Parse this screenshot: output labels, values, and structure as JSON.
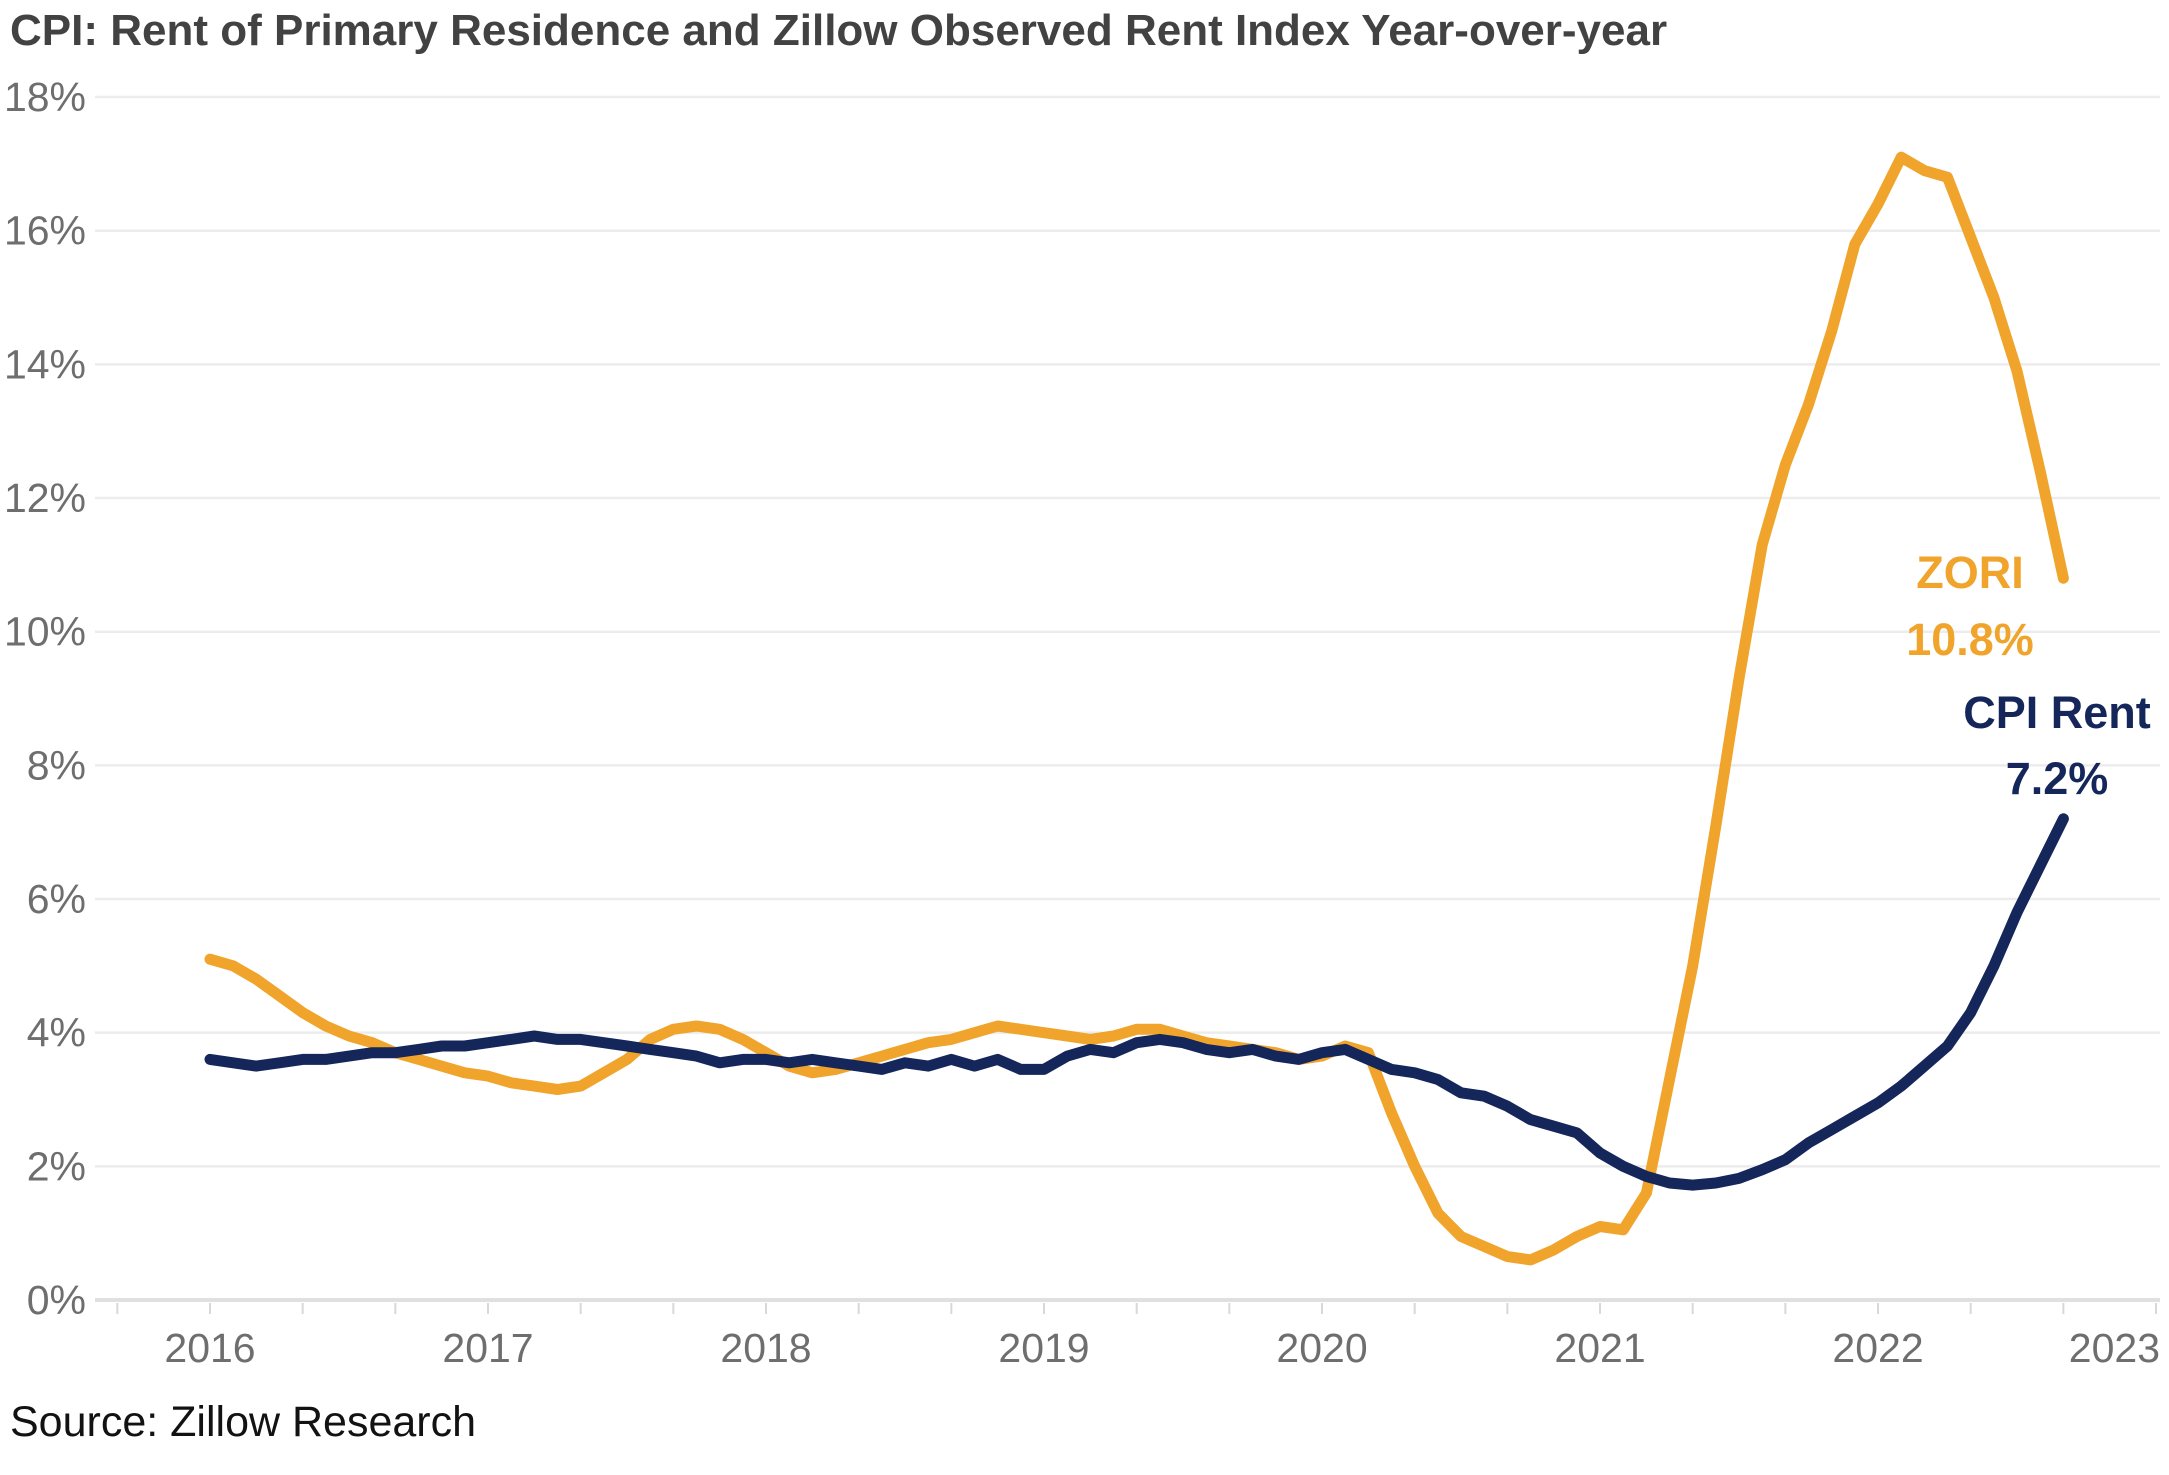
{
  "title": "CPI: Rent of Primary Residence and Zillow Observed Rent Index Year-over-year",
  "source": "Source: Zillow Research",
  "colors": {
    "zori": "#F0A42C",
    "cpi": "#14265A",
    "grid": "#ECECEC",
    "axis_line": "#E0E0E0",
    "tick": "#D8D8D8",
    "tick_label": "#6E6E6E",
    "title_text": "#424242",
    "source_text": "#121212"
  },
  "annotations": {
    "zori_label": "ZORI",
    "zori_value": "10.8%",
    "cpi_label": "CPI Rent",
    "cpi_value": "7.2%"
  },
  "y_axis": {
    "tick_labels": [
      "0%",
      "2%",
      "4%",
      "6%",
      "8%",
      "10%",
      "12%",
      "14%",
      "16%",
      "18%"
    ],
    "tick_values": [
      0,
      2,
      4,
      6,
      8,
      10,
      12,
      14,
      16,
      18
    ]
  },
  "x_axis": {
    "tick_labels": [
      "2016",
      "2017",
      "2018",
      "2019",
      "2020",
      "2021",
      "2022",
      "2023"
    ],
    "tick_month_index": [
      0,
      12,
      24,
      36,
      48,
      60,
      72,
      84
    ]
  },
  "chart_data": {
    "type": "line",
    "title": "CPI: Rent of Primary Residence and Zillow Observed Rent Index Year-over-year",
    "xlabel": "",
    "ylabel": "",
    "ylim": [
      0,
      18
    ],
    "x_domain_month_index": [
      0,
      84
    ],
    "x_start": "2016-01",
    "x_end_of_data": "2022-09",
    "grid": "horizontal",
    "legend_position": "inline-annotations",
    "series": [
      {
        "name": "ZORI",
        "color": "#F0A42C",
        "end_label": "ZORI 10.8%",
        "values": [
          5.1,
          5.0,
          4.8,
          4.55,
          4.3,
          4.1,
          3.95,
          3.85,
          3.7,
          3.6,
          3.5,
          3.4,
          3.35,
          3.25,
          3.2,
          3.15,
          3.2,
          3.4,
          3.6,
          3.9,
          4.05,
          4.1,
          4.05,
          3.9,
          3.7,
          3.5,
          3.4,
          3.45,
          3.55,
          3.65,
          3.75,
          3.85,
          3.9,
          4.0,
          4.1,
          4.05,
          4.0,
          3.95,
          3.9,
          3.95,
          4.05,
          4.05,
          3.95,
          3.85,
          3.8,
          3.75,
          3.7,
          3.6,
          3.65,
          3.8,
          3.7,
          2.8,
          2.0,
          1.3,
          0.95,
          0.8,
          0.65,
          0.6,
          0.75,
          0.95,
          1.1,
          1.05,
          1.6,
          3.3,
          5.0,
          7.1,
          9.3,
          11.3,
          12.5,
          13.4,
          14.5,
          15.8,
          16.4,
          17.1,
          16.9,
          16.8,
          15.9,
          15.0,
          13.9,
          12.4,
          10.8
        ]
      },
      {
        "name": "CPI Rent",
        "color": "#14265A",
        "end_label": "CPI Rent 7.2%",
        "values": [
          3.6,
          3.55,
          3.5,
          3.55,
          3.6,
          3.6,
          3.65,
          3.7,
          3.7,
          3.75,
          3.8,
          3.8,
          3.85,
          3.9,
          3.95,
          3.9,
          3.9,
          3.85,
          3.8,
          3.75,
          3.7,
          3.65,
          3.55,
          3.6,
          3.6,
          3.55,
          3.6,
          3.55,
          3.5,
          3.45,
          3.55,
          3.5,
          3.6,
          3.5,
          3.6,
          3.45,
          3.45,
          3.65,
          3.75,
          3.7,
          3.85,
          3.9,
          3.85,
          3.75,
          3.7,
          3.75,
          3.65,
          3.6,
          3.7,
          3.75,
          3.6,
          3.45,
          3.4,
          3.3,
          3.1,
          3.05,
          2.9,
          2.7,
          2.6,
          2.5,
          2.2,
          2.0,
          1.85,
          1.75,
          1.72,
          1.75,
          1.82,
          1.95,
          2.1,
          2.35,
          2.55,
          2.75,
          2.95,
          3.2,
          3.5,
          3.8,
          4.3,
          5.0,
          5.8,
          6.5,
          7.2
        ]
      }
    ]
  }
}
